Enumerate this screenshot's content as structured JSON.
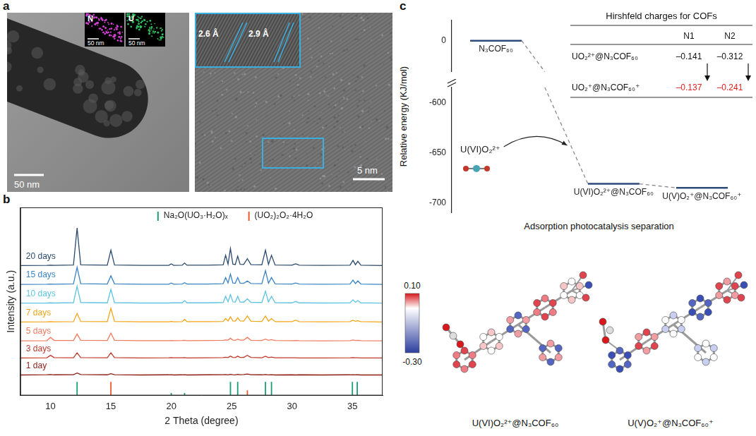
{
  "panel_letters": [
    "a",
    "b",
    "c"
  ],
  "panel_a": {
    "left_image": {
      "scale_bar": "50 nm",
      "insets": [
        {
          "label": "N",
          "scale_bar": "50 nm",
          "color": "#d040d0"
        },
        {
          "label": "U",
          "scale_bar": "50 nm",
          "color": "#30c060"
        }
      ]
    },
    "right_image": {
      "scale_bar": "5 nm",
      "inset_labels": [
        "2.6 Å",
        "2.9 Å"
      ]
    }
  },
  "chart_data": [
    {
      "type": "line",
      "x_label": "2 Theta (degree)",
      "y_label": "Intensity (a.u.)",
      "x": [
        7.5,
        9.7,
        10.0,
        10.3,
        11.9,
        12.2,
        12.5,
        14.7,
        15.0,
        15.3,
        17.5,
        19.8,
        20.0,
        20.2,
        20.9,
        21.1,
        21.3,
        23.0,
        24.3,
        24.5,
        24.7,
        24.9,
        25.1,
        25.3,
        25.5,
        25.7,
        26.0,
        26.3,
        26.6,
        27.5,
        27.8,
        28.05,
        28.3,
        28.6,
        30.0,
        30.3,
        30.6,
        32.5,
        34.8,
        35.05,
        35.25,
        35.45,
        35.7,
        37.5
      ],
      "series": [
        {
          "name": "1 day",
          "color": "#8c1c13",
          "values": [
            12,
            12.2,
            12.3,
            12.1,
            12.2,
            13.2,
            12.3,
            12.1,
            12.8,
            12.2,
            12,
            12.1,
            12.2,
            12,
            12.1,
            12.2,
            12,
            12.1,
            12.2,
            12.3,
            12.1,
            12.4,
            12.2,
            12.1,
            12.4,
            12.2,
            12.3,
            12.6,
            12.2,
            12.1,
            12.3,
            12.1,
            12.2,
            12,
            12.1,
            12,
            12.1,
            12,
            12.1,
            12.2,
            12.1,
            12.1,
            12,
            12
          ]
        },
        {
          "name": "3 days",
          "color": "#c0392b",
          "values": [
            22,
            22.1,
            23.5,
            22.2,
            22.1,
            25,
            22.2,
            22.1,
            25,
            22.2,
            22,
            22.1,
            22.2,
            22.1,
            22.1,
            22.2,
            22,
            22.1,
            22.2,
            22.4,
            22.2,
            23,
            22.3,
            22.2,
            23,
            22.3,
            22.3,
            23.5,
            22.3,
            22.1,
            23,
            22.2,
            22.5,
            22.1,
            22.1,
            22.1,
            22,
            22,
            22.1,
            22.2,
            22.1,
            22.1,
            22,
            22
          ]
        },
        {
          "name": "5 days",
          "color": "#f07b5f",
          "values": [
            32,
            32.1,
            34,
            32.2,
            32.2,
            36,
            32.3,
            32.2,
            36.5,
            32.3,
            32.1,
            32.1,
            32.2,
            32.1,
            32.2,
            32.3,
            32.1,
            32.2,
            32.3,
            32.5,
            32.4,
            33.5,
            32.4,
            32.3,
            33,
            32.4,
            32.4,
            34,
            32.3,
            32.2,
            33,
            32.3,
            32.7,
            32.2,
            32.1,
            32.2,
            32.1,
            32,
            32.1,
            32.5,
            32.2,
            32.3,
            32.1,
            32
          ]
        },
        {
          "name": "7 days",
          "color": "#f2a516",
          "values": [
            43,
            43.1,
            43.2,
            43.1,
            43.2,
            48,
            43.3,
            43.2,
            51,
            43.3,
            43.1,
            43.1,
            43.3,
            43.1,
            43.2,
            44.5,
            43.2,
            43.2,
            43.3,
            45,
            43.6,
            46,
            43.6,
            43.5,
            45.5,
            43.6,
            43.5,
            46.5,
            43.4,
            43.3,
            46.5,
            43.5,
            45,
            43.2,
            43.2,
            44,
            43.2,
            43.1,
            43.2,
            44,
            43.4,
            43.7,
            43.2,
            43
          ]
        },
        {
          "name": "10 days",
          "color": "#5ec4e0",
          "values": [
            54,
            54.1,
            54.2,
            54.1,
            54.3,
            64,
            54.4,
            54.2,
            62,
            54.3,
            54.1,
            54.1,
            54.2,
            54.2,
            54.2,
            55.5,
            54.2,
            54.2,
            54.4,
            58,
            54.8,
            59,
            54.8,
            54.6,
            58,
            54.7,
            54.6,
            56.5,
            54.5,
            54.4,
            61,
            54.7,
            58,
            54.3,
            54.2,
            55,
            54.2,
            54.1,
            54.2,
            56,
            54.5,
            55.5,
            54.2,
            54
          ]
        },
        {
          "name": "15 days",
          "color": "#3b84c4",
          "values": [
            65,
            65.1,
            65.2,
            65.1,
            65.3,
            75,
            65.4,
            65.2,
            70,
            65.3,
            65.1,
            65.1,
            65.8,
            65.1,
            65.2,
            66,
            65.2,
            65.2,
            65.4,
            69,
            65.8,
            71,
            65.8,
            65.6,
            69,
            65.7,
            65.6,
            67,
            65.5,
            65.4,
            73,
            65.7,
            69,
            65.3,
            65.2,
            65.8,
            65.2,
            65.1,
            65.2,
            67.5,
            65.5,
            67,
            65.2,
            65
          ]
        },
        {
          "name": "20 days",
          "color": "#2b4a6f",
          "values": [
            76,
            76.1,
            76.2,
            76.1,
            76.3,
            98,
            76.4,
            76.2,
            85,
            76.3,
            76.1,
            76.1,
            77,
            76.1,
            76.2,
            77.5,
            76.2,
            76.2,
            76.4,
            82,
            76.8,
            86,
            76.8,
            76.6,
            81.5,
            76.7,
            76.6,
            80,
            76.5,
            76.4,
            85,
            76.7,
            82,
            76.3,
            76.2,
            77,
            76.2,
            76.1,
            76.2,
            79,
            76.5,
            78.5,
            76.2,
            76
          ]
        },
        {
          "name": "Na₂O(UO₃·H₂O)ₓ",
          "type": "stick",
          "color": "#1b9e77",
          "x": [
            12.2,
            20.0,
            21.1,
            24.9,
            25.5,
            27.8,
            28.3,
            35.0,
            35.4
          ],
          "values": [
            8,
            1.5,
            1.5,
            8,
            8,
            8,
            8,
            8,
            8
          ]
        },
        {
          "name": "(UO₂)₂O₂·4H₂O",
          "type": "stick",
          "color": "#f05a28",
          "x": [
            15.0,
            26.3
          ],
          "values": [
            8,
            3
          ]
        }
      ],
      "xlim": [
        7.5,
        37.5
      ],
      "xticks": [
        10,
        15,
        20,
        25,
        30,
        35
      ],
      "ylim": [
        0,
        110
      ],
      "grid": false,
      "tick_labels": "x",
      "legend": "top"
    },
    {
      "type": "energy_diagram",
      "y_label": "Relative energy (KJ/mol)",
      "x_label": "Adsorption photocatalysis separation",
      "categories": [
        "N₃COF₆₀",
        "U(VI)O₂²⁺@N₃COF₆₀",
        "U(V)O₂⁺@N₃COF₆₀⁺"
      ],
      "values": [
        0,
        -681,
        -685
      ],
      "color": "#2e4a7d",
      "ylim": [
        -710,
        20
      ],
      "y_break": [
        -585,
        -30
      ],
      "yticks": [
        -700,
        -650,
        -600,
        0
      ],
      "annotation": "U(VI)O₂²⁺",
      "grid": false,
      "tick_labels": "y"
    }
  ],
  "table": {
    "title": "Hirshfeld charges for COFs",
    "columns": [
      "N1",
      "N2"
    ],
    "rows": [
      {
        "label": "UO₂²⁺@N₃COF₆₀",
        "values": [
          "–0.141",
          "–0.312"
        ],
        "color": "#111111"
      },
      {
        "label": "UO₂⁺@N₃COF₆₀⁺",
        "values": [
          "–0.137",
          "–0.241"
        ],
        "color": "#e02020"
      }
    ]
  },
  "structures": {
    "colorbar": {
      "range": [
        -0.3,
        0.1
      ],
      "ticks": [
        {
          "value": 0.1,
          "label": "0.10"
        },
        {
          "value": -0.3,
          "label": "-0.30"
        }
      ],
      "colors": [
        "#d7191c",
        "#ffffff",
        "#2c3e9e"
      ]
    },
    "labels": [
      "U(VI)O₂²⁺@N₃COF₆₀",
      "U(V)O₂⁺@N₃COF₆₀⁺"
    ]
  }
}
